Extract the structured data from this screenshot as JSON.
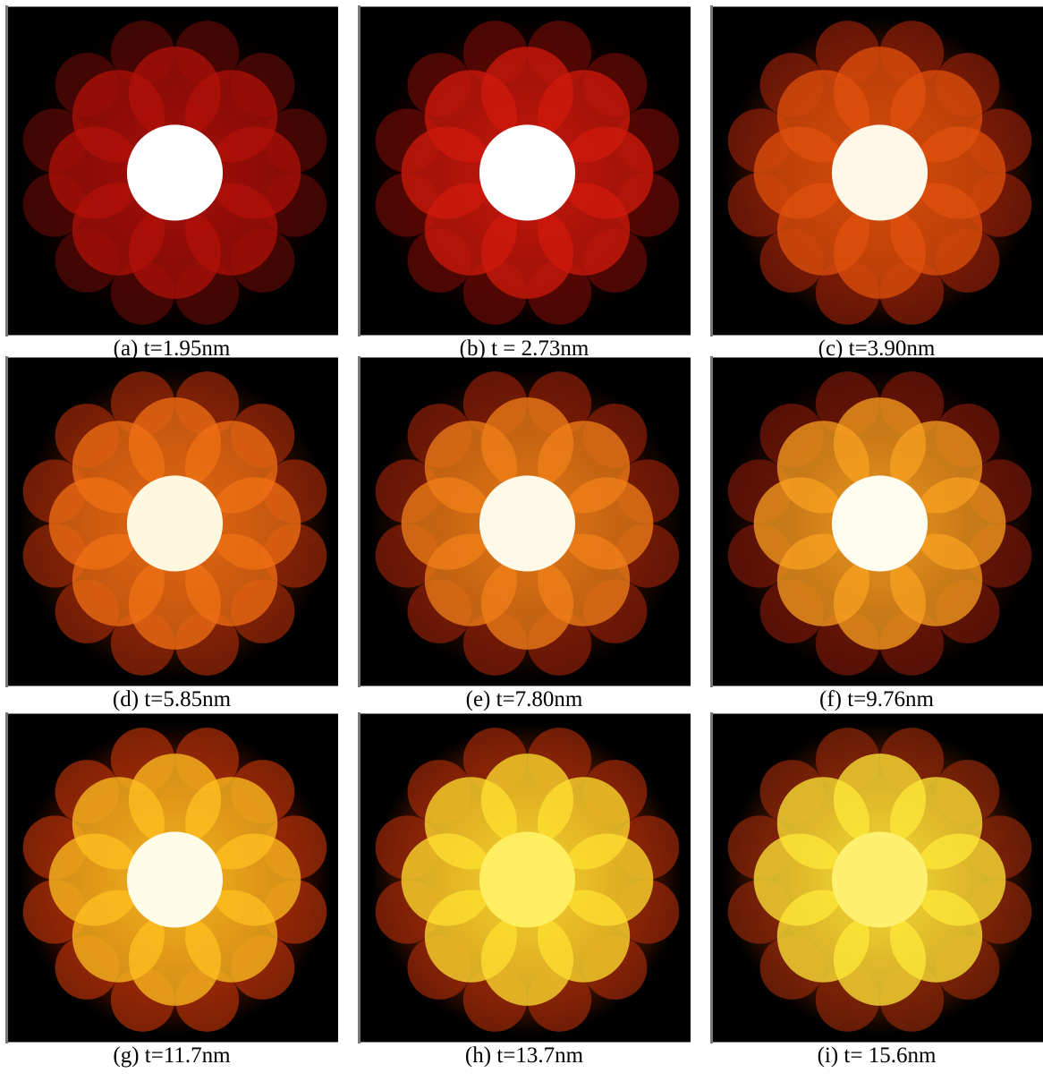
{
  "panels": [
    {
      "caption": "(a) t=1.95nm"
    },
    {
      "caption": "(b) t = 2.73nm"
    },
    {
      "caption": "(c) t=3.90nm"
    },
    {
      "caption": "(d) t=5.85nm"
    },
    {
      "caption": "(e) t=7.80nm"
    },
    {
      "caption": "(f) t=9.76nm"
    },
    {
      "caption": "(g) t=11.7nm"
    },
    {
      "caption": "(h) t=13.7nm"
    },
    {
      "caption": "(i) t= 15.6nm"
    }
  ]
}
